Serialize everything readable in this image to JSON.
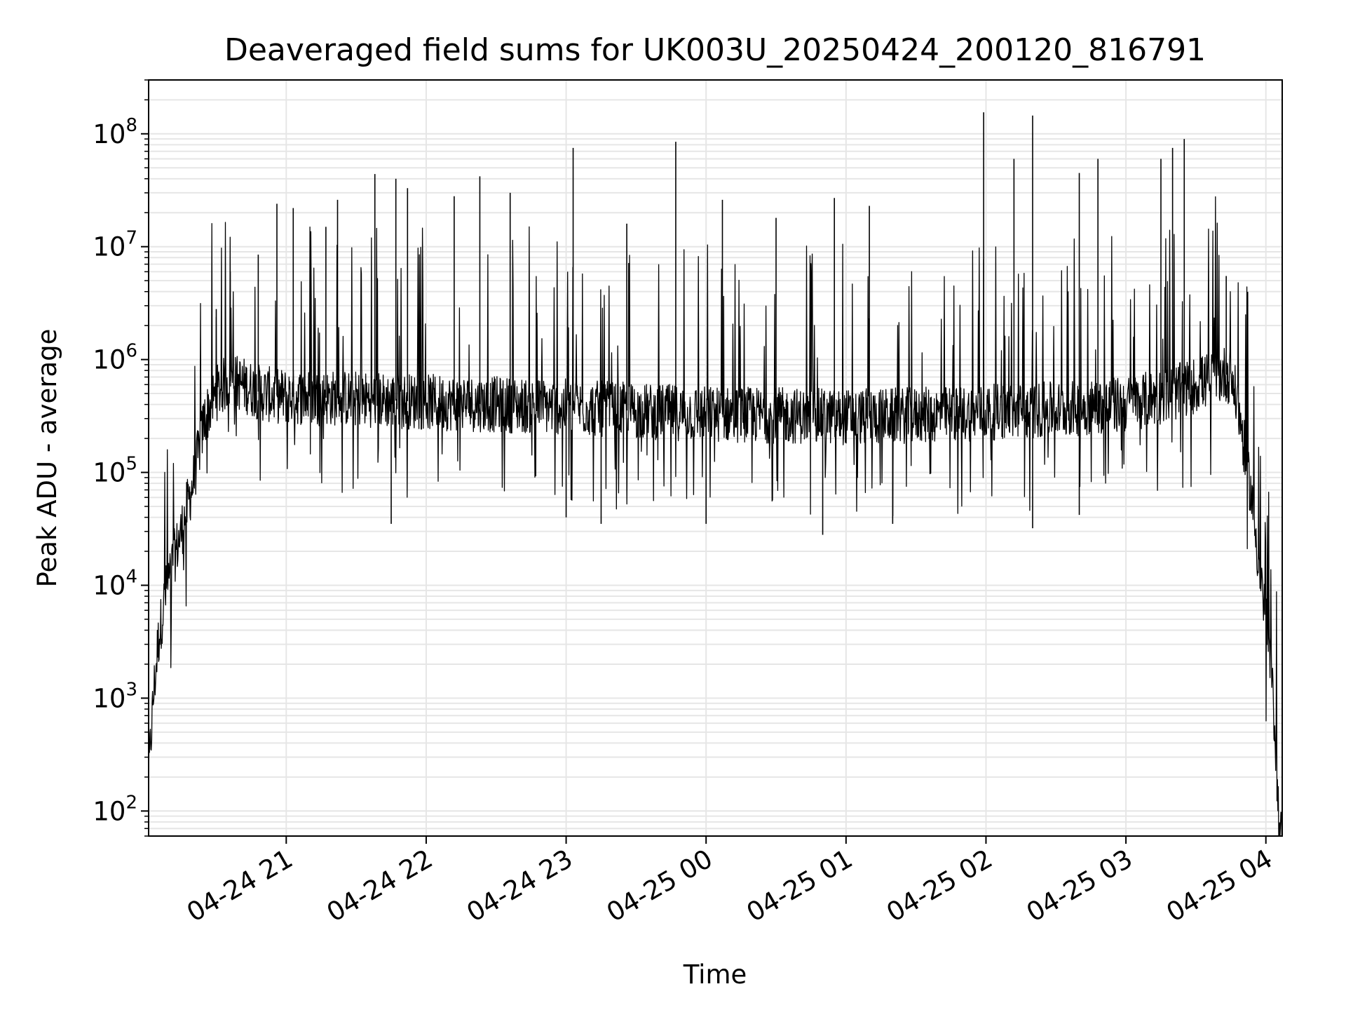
{
  "chart_data": {
    "type": "line",
    "title": "Deaveraged field sums for UK003U_20250424_200120_816791",
    "xlabel": "Time",
    "ylabel": "Peak ADU - average",
    "y_scale": "log",
    "ylim": [
      60,
      300000000
    ],
    "xlim": [
      "2025-04-24 20:01",
      "2025-04-25 04:07"
    ],
    "grid": true,
    "line_color": "#000000",
    "grid_color": "#e6e6e6",
    "x_ticks": [
      {
        "value": "2025-04-24 21:00",
        "label": "04-24 21"
      },
      {
        "value": "2025-04-24 22:00",
        "label": "04-24 22"
      },
      {
        "value": "2025-04-24 23:00",
        "label": "04-24 23"
      },
      {
        "value": "2025-04-25 00:00",
        "label": "04-25 00"
      },
      {
        "value": "2025-04-25 01:00",
        "label": "04-25 01"
      },
      {
        "value": "2025-04-25 02:00",
        "label": "04-25 02"
      },
      {
        "value": "2025-04-25 03:00",
        "label": "04-25 03"
      },
      {
        "value": "2025-04-25 04:00",
        "label": "04-25 04"
      }
    ],
    "y_ticks": [
      {
        "value": 100,
        "base": "10",
        "exp": "2"
      },
      {
        "value": 1000,
        "base": "10",
        "exp": "3"
      },
      {
        "value": 10000,
        "base": "10",
        "exp": "4"
      },
      {
        "value": 100000,
        "base": "10",
        "exp": "5"
      },
      {
        "value": 1000000,
        "base": "10",
        "exp": "6"
      },
      {
        "value": 10000000,
        "base": "10",
        "exp": "7"
      },
      {
        "value": 100000000,
        "base": "10",
        "exp": "8"
      }
    ],
    "series": [
      {
        "x": [
          "2025-04-24 20:01",
          "2025-04-24 20:03",
          "2025-04-24 20:05",
          "2025-04-24 20:08",
          "2025-04-24 20:11",
          "2025-04-24 20:15",
          "2025-04-24 20:20",
          "2025-04-24 20:25",
          "2025-04-24 20:30",
          "2025-04-24 20:35",
          "2025-04-24 20:40",
          "2025-04-24 20:45",
          "2025-04-24 20:50",
          "2025-04-24 20:55",
          "2025-04-24 21:00",
          "2025-04-24 21:30",
          "2025-04-24 22:00",
          "2025-04-24 22:30",
          "2025-04-24 23:00",
          "2025-04-24 23:30",
          "2025-04-25 00:00",
          "2025-04-25 00:30",
          "2025-04-25 01:00",
          "2025-04-25 01:30",
          "2025-04-25 02:00",
          "2025-04-25 02:30",
          "2025-04-25 03:00",
          "2025-04-25 03:20",
          "2025-04-25 03:35",
          "2025-04-25 03:42",
          "2025-04-25 03:45",
          "2025-04-25 03:48",
          "2025-04-25 03:51",
          "2025-04-25 03:54",
          "2025-04-25 03:57",
          "2025-04-25 04:00",
          "2025-04-25 04:02",
          "2025-04-25 04:04",
          "2025-04-25 04:05",
          "2025-04-25 04:06"
        ],
        "values": [
          200,
          1000,
          3000,
          8000,
          15000,
          30000,
          80000,
          300000,
          500000,
          650000,
          620000,
          550000,
          500000,
          480000,
          470000,
          450000,
          420000,
          400000,
          380000,
          350000,
          330000,
          320000,
          310000,
          320000,
          340000,
          360000,
          400000,
          500000,
          650000,
          750000,
          700000,
          400000,
          150000,
          60000,
          15000,
          5000,
          2000,
          500,
          150,
          60
        ]
      }
    ],
    "spikes": [
      {
        "x": "2025-04-24 20:30",
        "y": 2800000
      },
      {
        "x": "2025-04-24 20:36",
        "y": 6000000
      },
      {
        "x": "2025-04-24 20:48",
        "y": 8500000
      },
      {
        "x": "2025-04-24 20:56",
        "y": 24000000
      },
      {
        "x": "2025-04-24 21:03",
        "y": 22000000
      },
      {
        "x": "2025-04-24 21:17",
        "y": 15000000
      },
      {
        "x": "2025-04-24 21:22",
        "y": 26000000
      },
      {
        "x": "2025-04-24 21:38",
        "y": 44000000
      },
      {
        "x": "2025-04-24 21:47",
        "y": 40000000
      },
      {
        "x": "2025-04-24 21:52",
        "y": 33000000
      },
      {
        "x": "2025-04-24 22:12",
        "y": 28000000
      },
      {
        "x": "2025-04-24 22:23",
        "y": 42000000
      },
      {
        "x": "2025-04-24 22:36",
        "y": 30000000
      },
      {
        "x": "2025-04-24 23:03",
        "y": 75000000
      },
      {
        "x": "2025-04-24 23:26",
        "y": 16000000
      },
      {
        "x": "2025-04-24 23:47",
        "y": 85000000
      },
      {
        "x": "2025-04-25 00:07",
        "y": 26000000
      },
      {
        "x": "2025-04-25 00:30",
        "y": 18000000
      },
      {
        "x": "2025-04-25 00:55",
        "y": 27000000
      },
      {
        "x": "2025-04-25 01:10",
        "y": 23000000
      },
      {
        "x": "2025-04-25 01:59",
        "y": 155000000
      },
      {
        "x": "2025-04-25 02:12",
        "y": 60000000
      },
      {
        "x": "2025-04-25 02:20",
        "y": 145000000
      },
      {
        "x": "2025-04-25 02:40",
        "y": 45000000
      },
      {
        "x": "2025-04-25 02:48",
        "y": 60000000
      },
      {
        "x": "2025-04-25 03:15",
        "y": 60000000
      },
      {
        "x": "2025-04-25 03:20",
        "y": 75000000
      },
      {
        "x": "2025-04-25 03:25",
        "y": 90000000
      },
      {
        "x": "2025-04-25 03:43",
        "y": 5500000
      }
    ],
    "dips": [
      {
        "x": "2025-04-24 21:45",
        "y": 35000
      },
      {
        "x": "2025-04-24 23:00",
        "y": 40000
      },
      {
        "x": "2025-04-24 23:15",
        "y": 35000
      },
      {
        "x": "2025-04-25 00:00",
        "y": 35000
      },
      {
        "x": "2025-04-25 00:50",
        "y": 28000
      },
      {
        "x": "2025-04-25 01:20",
        "y": 35000
      },
      {
        "x": "2025-04-25 02:20",
        "y": 32000
      },
      {
        "x": "2025-04-25 02:40",
        "y": 42000
      }
    ]
  }
}
